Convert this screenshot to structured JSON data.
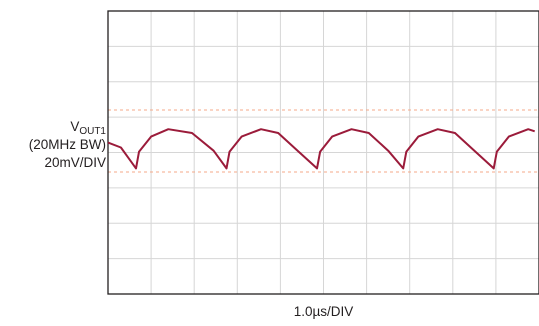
{
  "chart_data": {
    "type": "line",
    "title": "",
    "xlabel": "1.0µs/DIV",
    "ylabel_lines": [
      "V",
      "OUT1",
      "(20MHz BW)",
      "20mV/DIV"
    ],
    "divisions": {
      "x": 10,
      "y": 8
    },
    "trace_color": "#9b1b3a",
    "grid_color": "#d6d6d6",
    "marker_color": "#f4a98a",
    "series": [
      {
        "x": [
          0,
          0.3,
          0.65,
          0.72,
          1.0,
          1.4,
          1.95,
          2.45,
          2.75,
          2.82,
          3.1,
          3.55,
          3.95,
          4.4,
          4.85,
          4.92,
          5.2,
          5.65,
          6.05,
          6.5,
          6.85,
          6.92,
          7.2,
          7.65,
          8.05,
          8.5,
          8.95,
          9.02,
          9.3,
          9.75,
          9.9
        ],
        "y": [
          0.28,
          0.14,
          -0.45,
          0.02,
          0.45,
          0.66,
          0.55,
          0.05,
          -0.45,
          0.02,
          0.45,
          0.66,
          0.55,
          0.05,
          -0.45,
          0.02,
          0.45,
          0.66,
          0.55,
          0.05,
          -0.45,
          0.02,
          0.45,
          0.66,
          0.55,
          0.05,
          -0.45,
          0.02,
          0.45,
          0.66,
          0.6
        ]
      }
    ]
  }
}
